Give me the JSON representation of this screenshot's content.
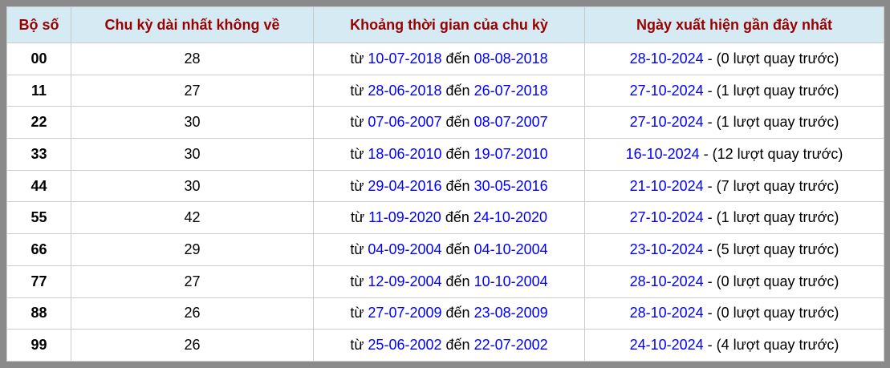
{
  "colors": {
    "frame_border": "#8a8a8a",
    "header_bg": "#d6eaf3",
    "header_text": "#990000",
    "date_link": "#0000ff",
    "cell_border": "#cccccc",
    "body_text": "#000000",
    "row_bg": "#ffffff"
  },
  "table": {
    "headers": [
      "Bộ số",
      "Chu kỳ dài nhất không về",
      "Khoảng thời gian của chu kỳ",
      "Ngày xuất hiện gần đây nhất"
    ],
    "period_from_label": "từ",
    "period_to_label": "đến",
    "rows": [
      {
        "pair": "00",
        "cycle": "28",
        "from_date": "10-07-2018",
        "to_date": "08-08-2018",
        "recent_date": "28-10-2024",
        "recent_suffix": "- (0 lượt quay trước)"
      },
      {
        "pair": "11",
        "cycle": "27",
        "from_date": "28-06-2018",
        "to_date": "26-07-2018",
        "recent_date": "27-10-2024",
        "recent_suffix": "- (1 lượt quay trước)"
      },
      {
        "pair": "22",
        "cycle": "30",
        "from_date": "07-06-2007",
        "to_date": "08-07-2007",
        "recent_date": "27-10-2024",
        "recent_suffix": "- (1 lượt quay trước)"
      },
      {
        "pair": "33",
        "cycle": "30",
        "from_date": "18-06-2010",
        "to_date": "19-07-2010",
        "recent_date": "16-10-2024",
        "recent_suffix": "- (12 lượt quay trước)"
      },
      {
        "pair": "44",
        "cycle": "30",
        "from_date": "29-04-2016",
        "to_date": "30-05-2016",
        "recent_date": "21-10-2024",
        "recent_suffix": "- (7 lượt quay trước)"
      },
      {
        "pair": "55",
        "cycle": "42",
        "from_date": "11-09-2020",
        "to_date": "24-10-2020",
        "recent_date": "27-10-2024",
        "recent_suffix": "- (1 lượt quay trước)"
      },
      {
        "pair": "66",
        "cycle": "29",
        "from_date": "04-09-2004",
        "to_date": "04-10-2004",
        "recent_date": "23-10-2024",
        "recent_suffix": "- (5 lượt quay trước)"
      },
      {
        "pair": "77",
        "cycle": "27",
        "from_date": "12-09-2004",
        "to_date": "10-10-2004",
        "recent_date": "28-10-2024",
        "recent_suffix": "- (0 lượt quay trước)"
      },
      {
        "pair": "88",
        "cycle": "26",
        "from_date": "27-07-2009",
        "to_date": "23-08-2009",
        "recent_date": "28-10-2024",
        "recent_suffix": "- (0 lượt quay trước)"
      },
      {
        "pair": "99",
        "cycle": "26",
        "from_date": "25-06-2002",
        "to_date": "22-07-2002",
        "recent_date": "24-10-2024",
        "recent_suffix": "- (4 lượt quay trước)"
      }
    ]
  }
}
